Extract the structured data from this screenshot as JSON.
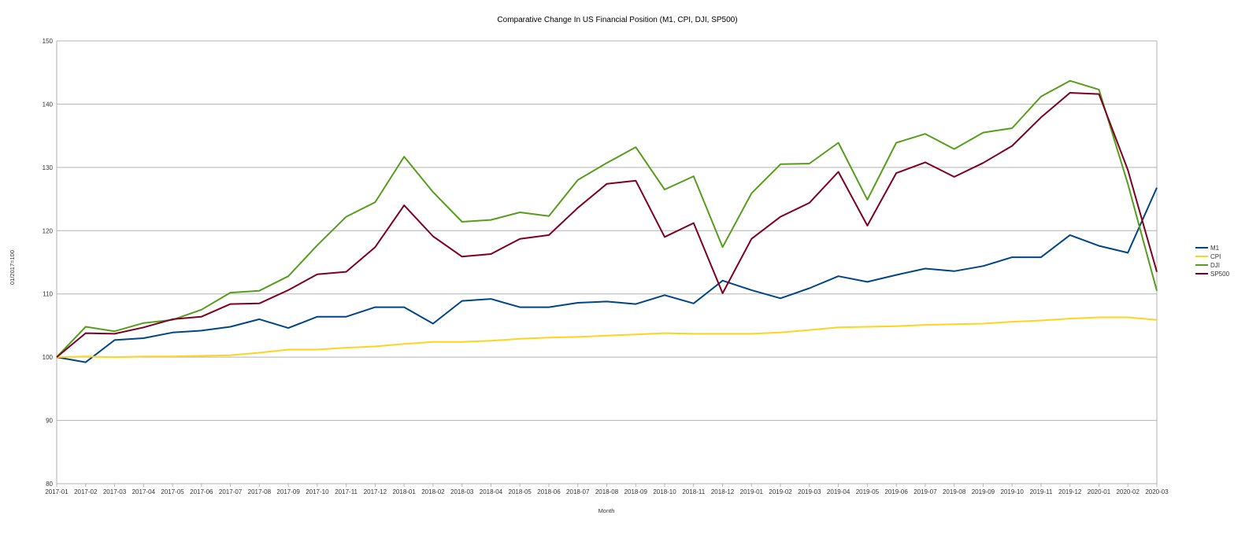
{
  "chart_data": {
    "type": "line",
    "title": "Comparative Change In US Financial Position (M1, CPI, DJI, SP500)",
    "xlabel": "Month",
    "ylabel": "01/2017=100",
    "ylim": [
      80,
      150
    ],
    "yticks": [
      80,
      90,
      100,
      110,
      120,
      130,
      140,
      150
    ],
    "grid": true,
    "legend_position": "right",
    "categories": [
      "2017-01",
      "2017-02",
      "2017-03",
      "2017-04",
      "2017-05",
      "2017-06",
      "2017-07",
      "2017-08",
      "2017-09",
      "2017-10",
      "2017-11",
      "2017-12",
      "2018-01",
      "2018-02",
      "2018-03",
      "2018-04",
      "2018-05",
      "2018-06",
      "2018-07",
      "2018-08",
      "2018-09",
      "2018-10",
      "2018-11",
      "2018-12",
      "2019-01",
      "2019-02",
      "2019-03",
      "2019-04",
      "2019-05",
      "2019-06",
      "2019-07",
      "2019-08",
      "2019-09",
      "2019-10",
      "2019-11",
      "2019-12",
      "2020-01",
      "2020-02",
      "2020-03"
    ],
    "series": [
      {
        "name": "M1",
        "color": "#004586",
        "values": [
          100,
          99.2,
          102.7,
          103,
          103.9,
          104.2,
          104.8,
          106,
          104.6,
          106.4,
          106.4,
          107.9,
          107.9,
          105.3,
          108.9,
          109.2,
          107.9,
          107.9,
          108.6,
          108.8,
          108.4,
          109.8,
          108.5,
          112.1,
          110.6,
          109.3,
          110.9,
          112.8,
          111.9,
          113,
          114,
          113.6,
          114.4,
          115.8,
          115.8,
          119.3,
          117.6,
          116.5,
          126.8
        ]
      },
      {
        "name": "CPI",
        "color": "#ffd320",
        "values": [
          100,
          100.1,
          100,
          100.1,
          100.1,
          100.2,
          100.3,
          100.7,
          101.2,
          101.2,
          101.5,
          101.7,
          102.1,
          102.4,
          102.4,
          102.6,
          102.9,
          103.1,
          103.2,
          103.4,
          103.6,
          103.8,
          103.7,
          103.7,
          103.7,
          103.9,
          104.3,
          104.7,
          104.8,
          104.9,
          105.1,
          105.2,
          105.3,
          105.6,
          105.8,
          106.1,
          106.3,
          106.3,
          105.9
        ]
      },
      {
        "name": "DJI",
        "color": "#579d1c",
        "values": [
          100,
          104.8,
          104.1,
          105.4,
          105.9,
          107.5,
          110.2,
          110.5,
          112.8,
          117.7,
          122.2,
          124.5,
          131.7,
          126.1,
          121.4,
          121.7,
          122.9,
          122.3,
          128,
          130.7,
          133.2,
          126.5,
          128.6,
          117.4,
          125.9,
          130.5,
          130.6,
          133.9,
          124.9,
          133.9,
          135.3,
          132.9,
          135.5,
          136.2,
          141.2,
          143.7,
          142.3,
          127.4,
          110.5
        ]
      },
      {
        "name": "SP500",
        "color": "#7e0021",
        "values": [
          100,
          103.8,
          103.7,
          104.7,
          106,
          106.4,
          108.4,
          108.5,
          110.6,
          113.1,
          113.5,
          117.4,
          124,
          119.1,
          115.9,
          116.3,
          118.7,
          119.3,
          123.6,
          127.4,
          127.9,
          119,
          121.2,
          110.1,
          118.7,
          122.2,
          124.4,
          129.3,
          120.8,
          129.1,
          130.8,
          128.5,
          130.7,
          133.4,
          137.9,
          141.8,
          141.6,
          129.6,
          113.5
        ]
      }
    ]
  }
}
